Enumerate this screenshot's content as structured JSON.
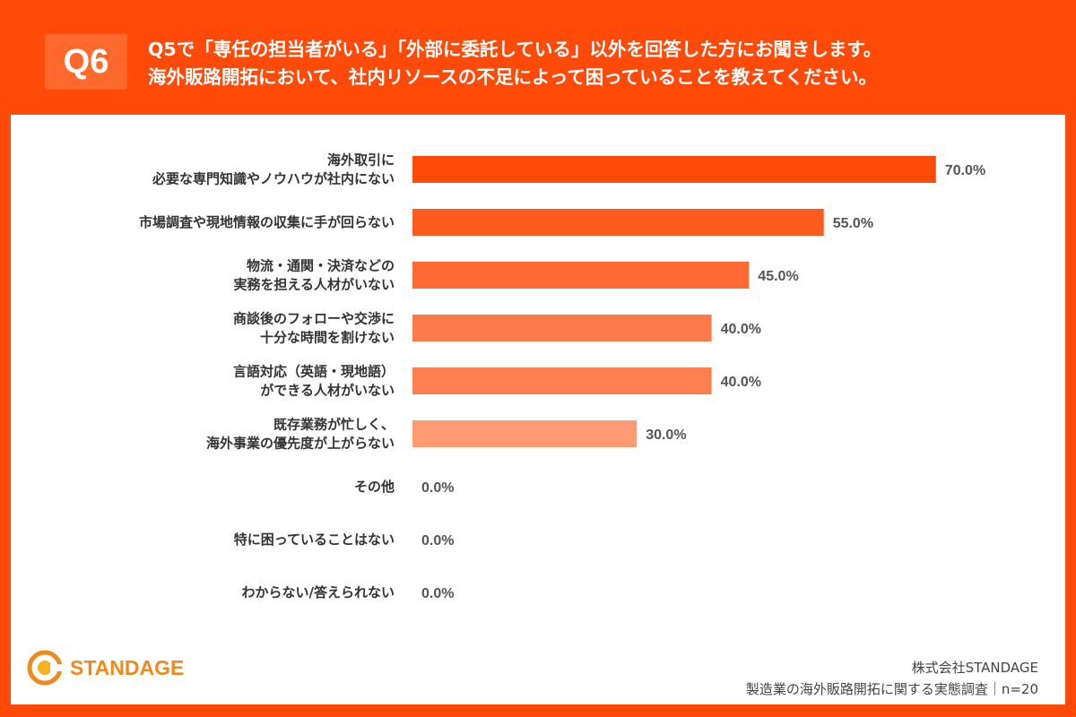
{
  "header": {
    "badge": "Q6",
    "question_line1": "Q5で「専任の担当者がいる」「外部に委託している」以外を回答した方にお聞きします。",
    "question_line2": "海外販路開拓において、社内リソースの不足によって困っていることを教えてください。"
  },
  "chart_data": {
    "type": "bar",
    "orientation": "horizontal",
    "categories": [
      [
        "海外取引に",
        "必要な専門知識やノウハウが社内にない"
      ],
      [
        "市場調査や現地情報の収集に手が回らない"
      ],
      [
        "物流・通関・決済などの",
        "実務を担える人材がいない"
      ],
      [
        "商談後のフォローや交渉に",
        "十分な時間を割けない"
      ],
      [
        "言語対応（英語・現地語）",
        "ができる人材がいない"
      ],
      [
        "既存業務が忙しく、",
        "海外事業の優先度が上がらない"
      ],
      [
        "その他"
      ],
      [
        "特に困っていることはない"
      ],
      [
        "わからない/答えられない"
      ]
    ],
    "values": [
      70.0,
      55.0,
      45.0,
      40.0,
      40.0,
      30.0,
      0.0,
      0.0,
      0.0
    ],
    "value_labels": [
      "70.0%",
      "55.0%",
      "45.0%",
      "40.0%",
      "40.0%",
      "30.0%",
      "0.0%",
      "0.0%",
      "0.0%"
    ],
    "bar_colors": [
      "#ff4a0a",
      "#ff5a1f",
      "#ff6a35",
      "#ff7a4b",
      "#ff7f50",
      "#ff9a73",
      "#ffb08f",
      "#ffb08f",
      "#ffb08f"
    ],
    "xlim": [
      0,
      100
    ],
    "grid": false,
    "legend": "none"
  },
  "footer": {
    "logo_text": "STANDAGE",
    "company": "株式会社STANDAGE",
    "survey": "製造業の海外販路開拓に関する実態調査｜n=20"
  },
  "colors": {
    "brand": "#ff4a0a",
    "logo": "#f08a1e",
    "label_text": "#333333",
    "value_text": "#555555"
  }
}
